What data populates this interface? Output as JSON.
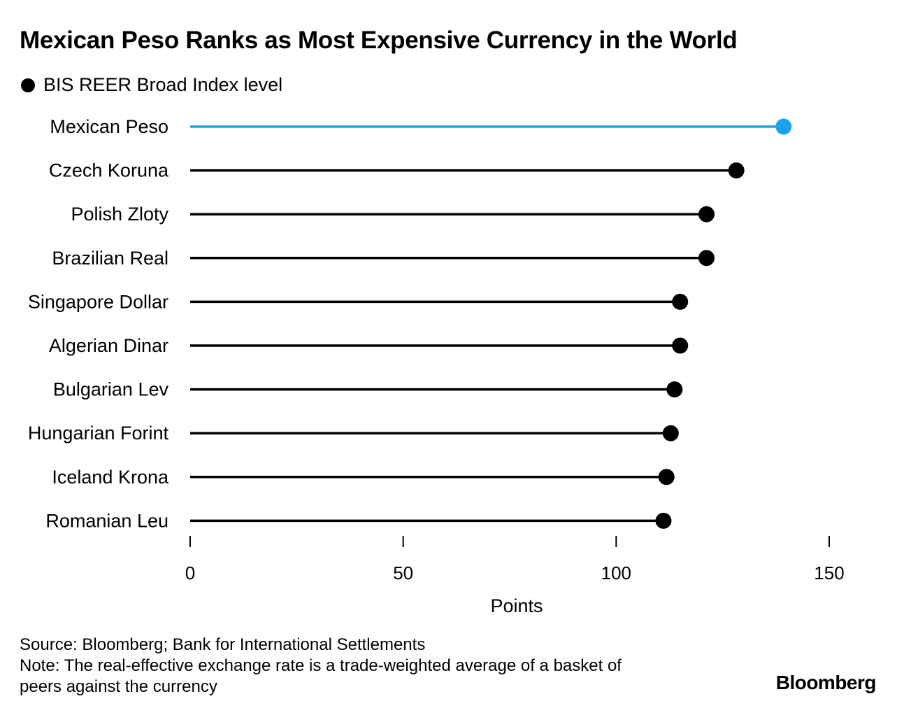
{
  "chart_data": {
    "type": "lollipop",
    "title": "Mexican Peso Ranks as Most Expensive Currency in the World",
    "legend": [
      {
        "name": "BIS REER Broad Index level",
        "color": "#000000"
      }
    ],
    "categories": [
      "Mexican Peso",
      "Czech Koruna",
      "Polish Zloty",
      "Brazilian Real",
      "Singapore Dollar",
      "Algerian Dinar",
      "Bulgarian Lev",
      "Hungarian Forint",
      "Iceland Krona",
      "Romanian Leu"
    ],
    "series": [
      {
        "name": "BIS REER Broad Index level",
        "values": [
          139.3,
          128.2,
          121.2,
          121.2,
          115.0,
          115.0,
          113.7,
          112.8,
          111.8,
          111.1
        ]
      }
    ],
    "highlight": {
      "category": "Mexican Peso",
      "color": "#1ba3ec"
    },
    "xlabel": "Points",
    "ylabel": "",
    "xlim": [
      0,
      150
    ],
    "xticks": [
      0,
      50,
      100,
      150
    ],
    "grid": false,
    "legend_position": "top-left"
  },
  "footer": {
    "source": "Source: Bloomberg; Bank for International Settlements",
    "note_line1": "Note: The real-effective exchange rate is a trade-weighted average of a basket of",
    "note_line2": "peers against the currency"
  },
  "brand": "Bloomberg",
  "colors": {
    "default_series": "#000000",
    "highlight": "#1ba3ec"
  }
}
